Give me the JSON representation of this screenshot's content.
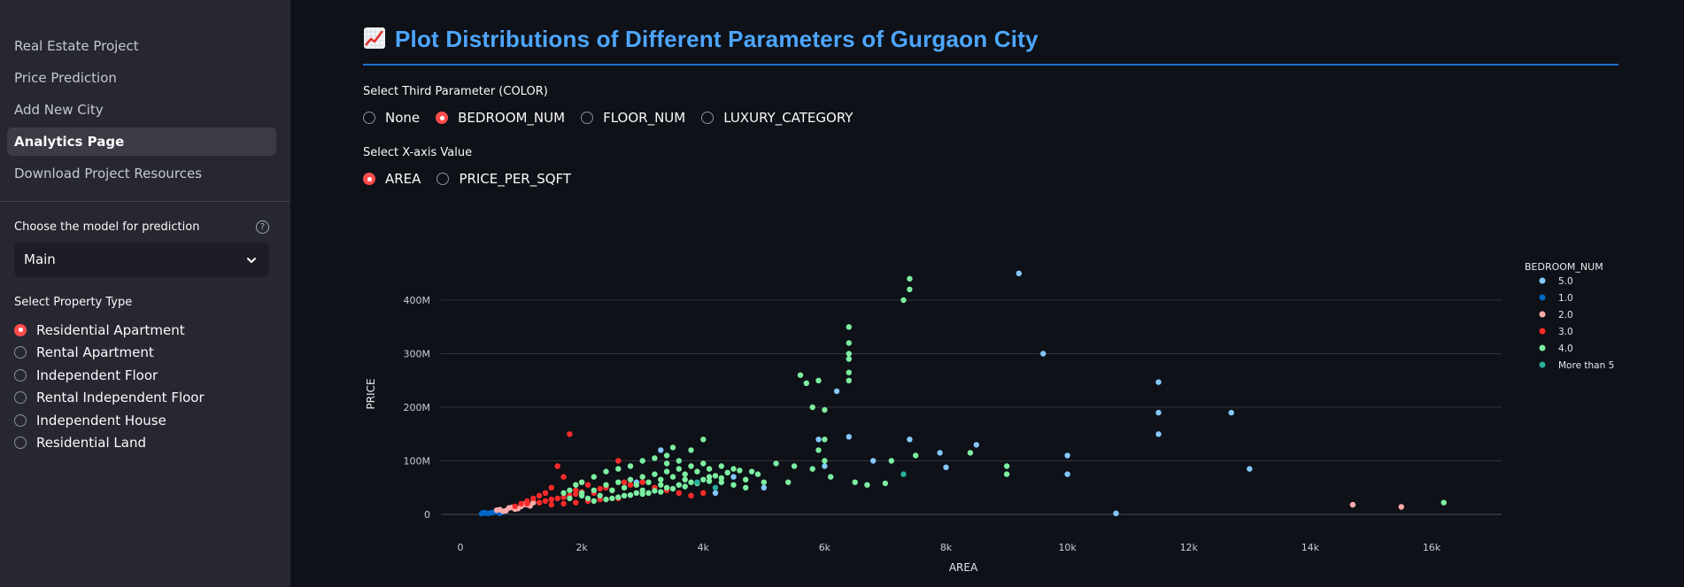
{
  "sidebar": {
    "nav_items": [
      {
        "label": "Real Estate Project",
        "active": false
      },
      {
        "label": "Price Prediction",
        "active": false
      },
      {
        "label": "Add New City",
        "active": false
      },
      {
        "label": "Analytics Page",
        "active": true
      },
      {
        "label": "Download Project Resources",
        "active": false
      }
    ],
    "model_label": "Choose the model for prediction",
    "model_value": "Main",
    "help_icon": "?",
    "property_type_label": "Select Property Type",
    "property_types": [
      {
        "label": "Residential Apartment",
        "selected": true
      },
      {
        "label": "Rental Apartment",
        "selected": false
      },
      {
        "label": "Independent Floor",
        "selected": false
      },
      {
        "label": "Rental Independent Floor",
        "selected": false
      },
      {
        "label": "Independent House",
        "selected": false
      },
      {
        "label": "Residential Land",
        "selected": false
      }
    ]
  },
  "main": {
    "title_icon": "chart-increasing-emoji",
    "title": "Plot Distributions of Different Parameters of Gurgaon City",
    "color_param_label": "Select Third Parameter (COLOR)",
    "color_options": [
      {
        "label": "None",
        "selected": false
      },
      {
        "label": "BEDROOM_NUM",
        "selected": true
      },
      {
        "label": "FLOOR_NUM",
        "selected": false
      },
      {
        "label": "LUXURY_CATEGORY",
        "selected": false
      }
    ],
    "xaxis_label": "Select X-axis Value",
    "xaxis_options": [
      {
        "label": "AREA",
        "selected": true
      },
      {
        "label": "PRICE_PER_SQFT",
        "selected": false
      }
    ]
  },
  "colors": {
    "accent": "#ff4b4b",
    "title": "#4da6ff",
    "background": "#0e1117",
    "sidebar": "#262730"
  },
  "chart_data": {
    "type": "scatter",
    "xlabel": "AREA",
    "ylabel": "PRICE",
    "xlim": [
      -500,
      17200
    ],
    "ylim": [
      -10000000,
      460000000
    ],
    "x_ticks": [
      0,
      2000,
      4000,
      6000,
      8000,
      10000,
      12000,
      14000,
      16000
    ],
    "x_tick_labels": [
      "0",
      "2k",
      "4k",
      "6k",
      "8k",
      "10k",
      "12k",
      "14k",
      "16k"
    ],
    "y_ticks": [
      0,
      100000000,
      200000000,
      300000000,
      400000000
    ],
    "y_tick_labels": [
      "0",
      "100M",
      "200M",
      "300M",
      "400M"
    ],
    "grid": true,
    "legend_title": "BEDROOM_NUM",
    "legend_position": "right",
    "series": [
      {
        "name": "5.0",
        "color": "#83c9ff",
        "points": [
          [
            9200,
            450000000
          ],
          [
            9600,
            300000000
          ],
          [
            11500,
            247000000
          ],
          [
            11500,
            190000000
          ],
          [
            11500,
            150000000
          ],
          [
            12700,
            190000000
          ],
          [
            13000,
            85000000
          ],
          [
            10000,
            110000000
          ],
          [
            10000,
            75000000
          ],
          [
            10800,
            2000000
          ],
          [
            8500,
            130000000
          ],
          [
            8000,
            88000000
          ],
          [
            7900,
            115000000
          ],
          [
            7400,
            140000000
          ],
          [
            6400,
            145000000
          ],
          [
            6200,
            230000000
          ],
          [
            6000,
            90000000
          ],
          [
            5900,
            140000000
          ],
          [
            6800,
            100000000
          ],
          [
            3300,
            120000000
          ],
          [
            2900,
            60000000
          ],
          [
            4500,
            70000000
          ],
          [
            5000,
            50000000
          ],
          [
            4200,
            40000000
          ]
        ]
      },
      {
        "name": "1.0",
        "color": "#0068c9",
        "points": [
          [
            350,
            1500000
          ],
          [
            420,
            2500000
          ],
          [
            500,
            3000000
          ],
          [
            600,
            5000000
          ],
          [
            650,
            2000000
          ],
          [
            550,
            4000000
          ],
          [
            700,
            4500000
          ],
          [
            380,
            3500000
          ],
          [
            450,
            1800000
          ]
        ]
      },
      {
        "name": "2.0",
        "color": "#ffabab",
        "points": [
          [
            14700,
            18000000
          ],
          [
            15500,
            14000000
          ],
          [
            600,
            8000000
          ],
          [
            800,
            12000000
          ],
          [
            1000,
            15000000
          ],
          [
            1200,
            22000000
          ],
          [
            700,
            6000000
          ],
          [
            900,
            10000000
          ],
          [
            1100,
            18000000
          ],
          [
            650,
            9000000
          ],
          [
            850,
            13000000
          ],
          [
            1050,
            19000000
          ],
          [
            750,
            7000000
          ],
          [
            950,
            11000000
          ],
          [
            1150,
            16000000
          ]
        ]
      },
      {
        "name": "3.0",
        "color": "#ff2b2b",
        "points": [
          [
            1800,
            150000000
          ],
          [
            2600,
            100000000
          ],
          [
            1600,
            90000000
          ],
          [
            2000,
            60000000
          ],
          [
            1700,
            70000000
          ],
          [
            1900,
            45000000
          ],
          [
            2100,
            55000000
          ],
          [
            1400,
            40000000
          ],
          [
            1500,
            50000000
          ],
          [
            1300,
            35000000
          ],
          [
            1200,
            30000000
          ],
          [
            1100,
            25000000
          ],
          [
            1000,
            20000000
          ],
          [
            1600,
            30000000
          ],
          [
            1800,
            35000000
          ],
          [
            2200,
            40000000
          ],
          [
            2400,
            50000000
          ],
          [
            2500,
            45000000
          ],
          [
            2700,
            60000000
          ],
          [
            2800,
            55000000
          ],
          [
            3000,
            60000000
          ],
          [
            3200,
            50000000
          ],
          [
            3400,
            45000000
          ],
          [
            3600,
            40000000
          ],
          [
            3800,
            35000000
          ],
          [
            4000,
            40000000
          ],
          [
            1400,
            25000000
          ],
          [
            1500,
            28000000
          ],
          [
            1700,
            32000000
          ],
          [
            1900,
            38000000
          ],
          [
            2000,
            42000000
          ],
          [
            2300,
            48000000
          ],
          [
            900,
            15000000
          ],
          [
            1100,
            20000000
          ],
          [
            1300,
            22000000
          ],
          [
            1500,
            18000000
          ],
          [
            1700,
            20000000
          ],
          [
            1900,
            22000000
          ],
          [
            2100,
            25000000
          ],
          [
            2300,
            28000000
          ],
          [
            2600,
            30000000
          ]
        ]
      },
      {
        "name": "4.0",
        "color": "#7defa1",
        "points": [
          [
            7400,
            440000000
          ],
          [
            7400,
            420000000
          ],
          [
            7300,
            400000000
          ],
          [
            6400,
            350000000
          ],
          [
            6400,
            320000000
          ],
          [
            6400,
            300000000
          ],
          [
            6400,
            290000000
          ],
          [
            6400,
            265000000
          ],
          [
            6400,
            250000000
          ],
          [
            5600,
            260000000
          ],
          [
            5700,
            245000000
          ],
          [
            5900,
            250000000
          ],
          [
            6000,
            195000000
          ],
          [
            5800,
            200000000
          ],
          [
            6000,
            140000000
          ],
          [
            5900,
            120000000
          ],
          [
            6000,
            100000000
          ],
          [
            6100,
            70000000
          ],
          [
            6500,
            60000000
          ],
          [
            6700,
            55000000
          ],
          [
            7100,
            100000000
          ],
          [
            7500,
            110000000
          ],
          [
            8400,
            115000000
          ],
          [
            9000,
            90000000
          ],
          [
            9000,
            75000000
          ],
          [
            16200,
            22000000
          ],
          [
            7000,
            58000000
          ],
          [
            5000,
            60000000
          ],
          [
            4800,
            80000000
          ],
          [
            4500,
            85000000
          ],
          [
            4300,
            90000000
          ],
          [
            4000,
            140000000
          ],
          [
            3800,
            120000000
          ],
          [
            3500,
            125000000
          ],
          [
            3400,
            110000000
          ],
          [
            3200,
            105000000
          ],
          [
            3000,
            100000000
          ],
          [
            2800,
            90000000
          ],
          [
            2600,
            85000000
          ],
          [
            2400,
            80000000
          ],
          [
            2200,
            70000000
          ],
          [
            2000,
            60000000
          ],
          [
            1900,
            55000000
          ],
          [
            1800,
            45000000
          ],
          [
            1700,
            40000000
          ],
          [
            2500,
            45000000
          ],
          [
            2700,
            50000000
          ],
          [
            2900,
            55000000
          ],
          [
            3100,
            60000000
          ],
          [
            3300,
            65000000
          ],
          [
            3500,
            70000000
          ],
          [
            3700,
            75000000
          ],
          [
            3900,
            80000000
          ],
          [
            4100,
            70000000
          ],
          [
            4300,
            60000000
          ],
          [
            4500,
            55000000
          ],
          [
            4700,
            50000000
          ],
          [
            2100,
            30000000
          ],
          [
            2300,
            35000000
          ],
          [
            2500,
            30000000
          ],
          [
            2700,
            35000000
          ],
          [
            2900,
            40000000
          ],
          [
            3100,
            40000000
          ],
          [
            3300,
            42000000
          ],
          [
            3500,
            48000000
          ],
          [
            3700,
            52000000
          ],
          [
            3900,
            58000000
          ],
          [
            4100,
            62000000
          ],
          [
            4300,
            68000000
          ],
          [
            2200,
            25000000
          ],
          [
            2400,
            28000000
          ],
          [
            2600,
            32000000
          ],
          [
            2800,
            36000000
          ],
          [
            3000,
            38000000
          ],
          [
            3200,
            44000000
          ],
          [
            3400,
            50000000
          ],
          [
            3600,
            55000000
          ],
          [
            3800,
            60000000
          ],
          [
            4000,
            65000000
          ],
          [
            4200,
            72000000
          ],
          [
            4400,
            78000000
          ],
          [
            4600,
            82000000
          ],
          [
            4900,
            75000000
          ],
          [
            5200,
            95000000
          ],
          [
            5500,
            90000000
          ],
          [
            5800,
            85000000
          ],
          [
            2000,
            40000000
          ],
          [
            2200,
            45000000
          ],
          [
            2400,
            55000000
          ],
          [
            2600,
            60000000
          ],
          [
            2800,
            65000000
          ],
          [
            3000,
            70000000
          ],
          [
            3200,
            75000000
          ],
          [
            3400,
            80000000
          ],
          [
            3600,
            85000000
          ],
          [
            3800,
            90000000
          ],
          [
            4000,
            95000000
          ],
          [
            3600,
            100000000
          ],
          [
            3400,
            95000000
          ],
          [
            1800,
            30000000
          ],
          [
            2000,
            35000000
          ],
          [
            3000,
            45000000
          ],
          [
            3300,
            55000000
          ],
          [
            3700,
            65000000
          ],
          [
            4100,
            85000000
          ],
          [
            4700,
            65000000
          ],
          [
            5400,
            60000000
          ]
        ]
      },
      {
        "name": "More than 5",
        "color": "#29b09d",
        "points": [
          [
            7300,
            75000000
          ],
          [
            4200,
            50000000
          ],
          [
            3900,
            60000000
          ]
        ]
      }
    ]
  }
}
